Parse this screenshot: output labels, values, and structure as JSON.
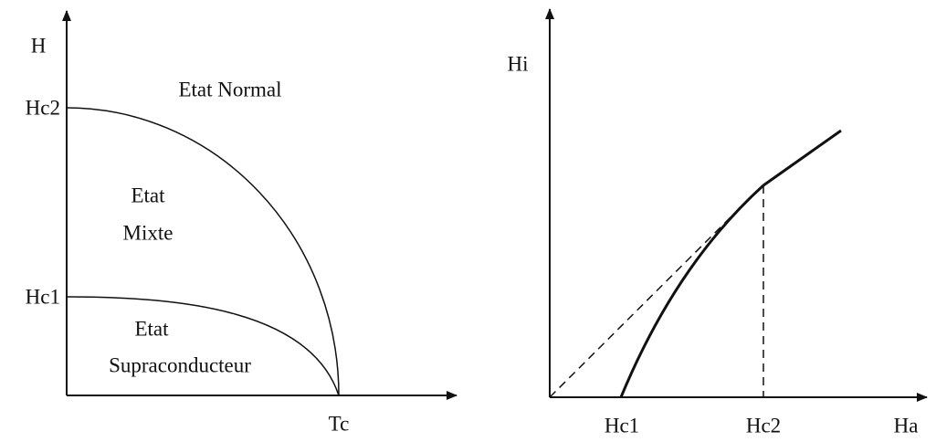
{
  "left": {
    "y_axis_label": "H",
    "y_ticks": [
      "Hc2",
      "Hc1"
    ],
    "x_tick": "Tc",
    "regions": [
      "Etat Normal",
      "Etat",
      "Mixte",
      "Etat",
      "Supraconducteur"
    ]
  },
  "right": {
    "y_axis_label": "Hi",
    "x_ticks": [
      "Hc1",
      "Hc2"
    ],
    "x_axis_label": "Ha"
  }
}
